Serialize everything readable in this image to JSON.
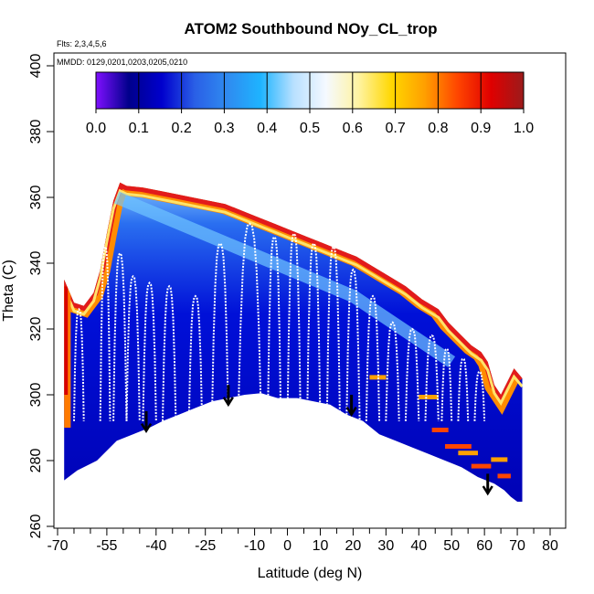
{
  "chart_data": {
    "type": "heatmap",
    "title": "ATOM2 Southbound NOy_CL_trop",
    "subtitle_flights": "Flts: 2,3,4,5,6",
    "subtitle_dates": "MMDD: 0129,0201,0203,0205,0210",
    "xlabel": "Latitude (deg N)",
    "ylabel": "Theta (C)",
    "xlim": [
      -75,
      82
    ],
    "ylim": [
      260,
      404
    ],
    "x_major_ticks": [
      -70,
      -55,
      -40,
      -25,
      -10,
      0,
      10,
      20,
      30,
      40,
      50,
      60,
      70,
      80
    ],
    "x_minor_ticks": [
      -65,
      -60,
      -50,
      -45,
      -35,
      -30,
      -20,
      -15,
      -5,
      5,
      15,
      25,
      35,
      45,
      55,
      65,
      75
    ],
    "y_ticks": [
      260,
      280,
      300,
      320,
      340,
      360,
      380,
      400
    ],
    "colorbar": {
      "ticks": [
        0.0,
        0.1,
        0.2,
        0.3,
        0.4,
        0.5,
        0.6,
        0.7,
        0.8,
        0.9,
        1.0
      ],
      "tick_labels": [
        "0.0",
        "0.1",
        "0.2",
        "0.3",
        "0.4",
        "0.5",
        "0.6",
        "0.7",
        "0.8",
        "0.9",
        "1.0"
      ],
      "colors": [
        "#7f10ff",
        "#00008b",
        "#0000cd",
        "#2a5fe6",
        "#2f8bf0",
        "#1eb4ff",
        "#b8e0ff",
        "#f5f9ff",
        "#fff3a0",
        "#ffd700",
        "#ff9f00",
        "#ff4500",
        "#e00000",
        "#9b1b1b"
      ]
    },
    "domain_boundary": {
      "lat": [
        -68,
        -64,
        -58,
        -52,
        -47,
        -42,
        -38,
        -33,
        -28,
        -23,
        -18,
        -13,
        -8,
        -3,
        3,
        8,
        13,
        18,
        23,
        28,
        33,
        38,
        43,
        48,
        53,
        58,
        63,
        66,
        68,
        70,
        71.5,
        71.5,
        69,
        67,
        65,
        63,
        61,
        59,
        56,
        53,
        49,
        46,
        41,
        36,
        31,
        26,
        21,
        16,
        11,
        6,
        1,
        -4,
        -9,
        -14,
        -19,
        -24,
        -29,
        -34,
        -39,
        -44,
        -49,
        -51,
        -53,
        -55,
        -57,
        -59,
        -62,
        -65,
        -68
      ],
      "theta": [
        274,
        277,
        280,
        286,
        288,
        290,
        292,
        294,
        296,
        298,
        299,
        300,
        300.5,
        299,
        299,
        298,
        297,
        294,
        292,
        288,
        286,
        284,
        282,
        280,
        278,
        275,
        273,
        271,
        269,
        267.5,
        267.5,
        305,
        308,
        304,
        300,
        303,
        310,
        313,
        315,
        318,
        322,
        326,
        329,
        333,
        336,
        339,
        342,
        344,
        346,
        348,
        350,
        352,
        354,
        356,
        358,
        359,
        360,
        361,
        362,
        363,
        363.5,
        364.5,
        359,
        349,
        338,
        331,
        327,
        328,
        335
      ]
    },
    "profiles": [
      {
        "lat_range": [
          -65,
          -62
        ],
        "theta_max": 326
      },
      {
        "lat_range": [
          -57,
          -54
        ],
        "theta_max": 345
      },
      {
        "lat_range": [
          -53,
          -49
        ],
        "theta_max": 343
      },
      {
        "lat_range": [
          -49,
          -45
        ],
        "theta_max": 336
      },
      {
        "lat_range": [
          -44,
          -40
        ],
        "theta_max": 334
      },
      {
        "lat_range": [
          -38,
          -34
        ],
        "theta_max": 333
      },
      {
        "lat_range": [
          -30,
          -26
        ],
        "theta_max": 330
      },
      {
        "lat_range": [
          -23,
          -18
        ],
        "theta_max": 346
      },
      {
        "lat_range": [
          -15,
          -8
        ],
        "theta_max": 352
      },
      {
        "lat_range": [
          -6,
          -2
        ],
        "theta_max": 348
      },
      {
        "lat_range": [
          0,
          4
        ],
        "theta_max": 349
      },
      {
        "lat_range": [
          6,
          10
        ],
        "theta_max": 346
      },
      {
        "lat_range": [
          12,
          16
        ],
        "theta_max": 345
      },
      {
        "lat_range": [
          18,
          22
        ],
        "theta_max": 338
      },
      {
        "lat_range": [
          24,
          28
        ],
        "theta_max": 330
      },
      {
        "lat_range": [
          30,
          34
        ],
        "theta_max": 322
      },
      {
        "lat_range": [
          36,
          40
        ],
        "theta_max": 320
      },
      {
        "lat_range": [
          42,
          46
        ],
        "theta_max": 318
      },
      {
        "lat_range": [
          47,
          50
        ],
        "theta_max": 314
      },
      {
        "lat_range": [
          52,
          55
        ],
        "theta_max": 311
      },
      {
        "lat_range": [
          57,
          60
        ],
        "theta_max": 307
      }
    ],
    "arrows": [
      {
        "lat": -43,
        "theta_top": 295,
        "theta_tip": 289
      },
      {
        "lat": -18,
        "theta_top": 303,
        "theta_tip": 297
      },
      {
        "lat": 19.5,
        "theta_top": 300,
        "theta_tip": 294
      },
      {
        "lat": 61,
        "theta_top": 276,
        "theta_tip": 270
      }
    ]
  }
}
